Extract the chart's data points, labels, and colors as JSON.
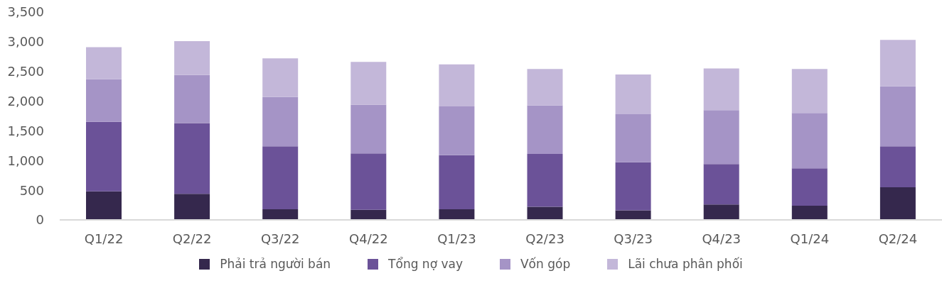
{
  "chart_data": {
    "type": "bar",
    "stacked": true,
    "categories": [
      "Q1/22",
      "Q2/22",
      "Q3/22",
      "Q4/22",
      "Q1/23",
      "Q2/23",
      "Q3/23",
      "Q4/23",
      "Q1/24",
      "Q2/24"
    ],
    "series": [
      {
        "name": "Phải trả người bán",
        "color": "#35284d",
        "values": [
          480,
          440,
          180,
          170,
          180,
          220,
          160,
          260,
          240,
          550
        ]
      },
      {
        "name": "Tổng nợ vay",
        "color": "#6b5298",
        "values": [
          1170,
          1190,
          1060,
          950,
          910,
          890,
          810,
          680,
          630,
          690
        ]
      },
      {
        "name": "Vốn góp",
        "color": "#a594c6",
        "values": [
          720,
          810,
          830,
          820,
          820,
          820,
          810,
          910,
          930,
          1010
        ]
      },
      {
        "name": "Lãi chưa phân phối",
        "color": "#c3b7d9",
        "values": [
          540,
          570,
          650,
          720,
          710,
          610,
          670,
          700,
          740,
          780
        ]
      }
    ],
    "ylim": [
      0,
      3500
    ],
    "yticks": [
      0,
      500,
      {
        "value": 1000,
        "label": "1,000"
      },
      {
        "value": 1500,
        "label": "1,500"
      },
      {
        "value": 2000,
        "label": "2,000"
      },
      {
        "value": 2500,
        "label": "2,500"
      },
      {
        "value": 3000,
        "label": "3,000"
      },
      {
        "value": 3500,
        "label": "3,500"
      }
    ],
    "legend": "bottom"
  }
}
